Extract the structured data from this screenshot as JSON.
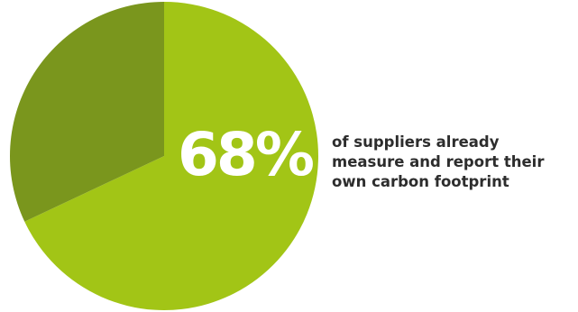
{
  "colors": {
    "primary_slice": "#a2c516",
    "secondary_slice": "#7a961d",
    "value_text": "#ffffff",
    "caption_text": "#2d2d2d"
  },
  "chart_data": {
    "type": "pie",
    "values": [
      68,
      32
    ],
    "value_label": "68%",
    "caption_lines": [
      "of suppliers already",
      "measure and report their",
      "own carbon footprint"
    ]
  }
}
